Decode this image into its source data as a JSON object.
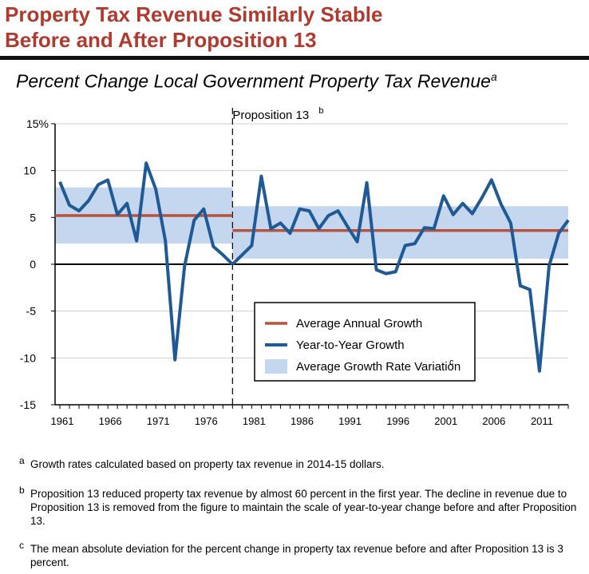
{
  "header": {
    "title_line1": "Property Tax Revenue Similarly Stable",
    "title_line2": "Before and After Proposition 13",
    "subtitle": "Percent Change Local Government Property Tax Revenue",
    "subtitle_sup": "a"
  },
  "chart_data": {
    "type": "line",
    "x_tick_labels": [
      "1961",
      "1966",
      "1971",
      "1976",
      "1981",
      "1986",
      "1991",
      "1996",
      "2001",
      "2006",
      "2011"
    ],
    "y_tick_labels": [
      "15%",
      "10",
      "5",
      "0",
      "-5",
      "-10",
      "-15"
    ],
    "ylim": [
      -15,
      15
    ],
    "xlim": [
      1960.5,
      2014
    ],
    "annotation": {
      "label": "Proposition 13",
      "sup": "b",
      "x": 1979
    },
    "series": [
      {
        "name": "Year-to-Year Growth",
        "color": "#1f5a96",
        "x": [
          1961,
          1962,
          1963,
          1964,
          1965,
          1966,
          1967,
          1968,
          1969,
          1970,
          1971,
          1972,
          1973,
          1974,
          1975,
          1976,
          1977,
          1978,
          1979,
          1979,
          1980,
          1981,
          1982,
          1983,
          1984,
          1985,
          1986,
          1987,
          1988,
          1989,
          1990,
          1991,
          1992,
          1993,
          1994,
          1995,
          1996,
          1997,
          1998,
          1999,
          2000,
          2001,
          2002,
          2003,
          2004,
          2005,
          2006,
          2007,
          2008,
          2009,
          2010,
          2011,
          2012,
          2013,
          2014
        ],
        "y": [
          8.8,
          6.3,
          5.7,
          6.8,
          8.5,
          9.0,
          5.3,
          6.5,
          2.5,
          10.8,
          8.0,
          2.5,
          -10.2,
          -0.2,
          4.7,
          5.9,
          1.9,
          1.0,
          0.0,
          0.0,
          1.0,
          2.0,
          9.4,
          3.8,
          4.4,
          3.3,
          5.9,
          5.7,
          3.8,
          5.2,
          5.7,
          4.0,
          2.4,
          8.7,
          -0.6,
          -1.0,
          -0.8,
          2.0,
          2.2,
          3.9,
          3.8,
          7.3,
          5.3,
          6.5,
          5.4,
          7.1,
          9.0,
          6.4,
          4.4,
          -2.3,
          -2.7,
          -11.4,
          -0.2,
          3.3,
          4.7
        ]
      },
      {
        "name": "Average Annual Growth",
        "color": "#b5533f",
        "segments": [
          {
            "x": [
              1960.5,
              1979
            ],
            "y": 5.2
          },
          {
            "x": [
              1979,
              2014
            ],
            "y": 3.6
          }
        ]
      },
      {
        "name": "Average Growth Rate Variation",
        "name_sup": "c",
        "color": "#c5d6ef",
        "bands": [
          {
            "x": [
              1960.5,
              1979
            ],
            "y": [
              2.2,
              8.2
            ]
          },
          {
            "x": [
              1979,
              2014
            ],
            "y": [
              0.6,
              6.2
            ]
          }
        ]
      }
    ],
    "legend_placement": "bottom-right"
  },
  "footnotes": [
    {
      "mark": "a",
      "text": "Growth rates calculated based on property tax revenue in 2014-15 dollars."
    },
    {
      "mark": "b",
      "text": "Proposition 13 reduced property tax revenue by almost 60 percent in the first year. The decline in revenue due to Proposition 13 is removed from the figure to maintain the scale of year-to-year change before and after Proposition 13."
    },
    {
      "mark": "c",
      "text": "The mean absolute deviation for the percent change in property tax revenue before and after Proposition 13 is 3 percent."
    }
  ]
}
